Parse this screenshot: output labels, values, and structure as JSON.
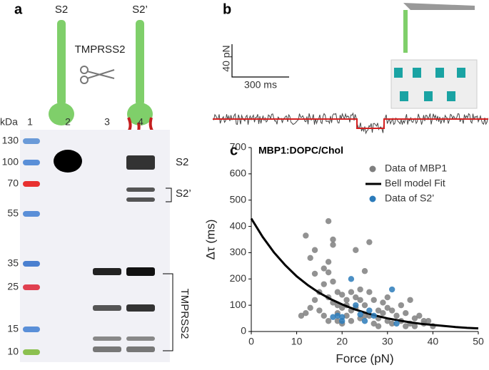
{
  "panel_a": {
    "label": "a",
    "protein_before": "S2",
    "protein_after": "S2’",
    "enzyme": "TMPRSS2",
    "kda_header": "kDa",
    "lanes": [
      "1",
      "2",
      "3",
      "4"
    ],
    "markers": [
      130,
      100,
      70,
      55,
      35,
      25,
      15,
      10
    ],
    "band_labels": [
      "S2",
      "S2’",
      "TMPRSS2"
    ]
  },
  "panel_b": {
    "label": "b",
    "scale_force": "40 pN",
    "scale_time": "300 ms"
  },
  "chart_data": {
    "type": "scatter",
    "panel_label": "c",
    "title": "MBP1:DOPC/Chol",
    "x_label": "Force (pN)",
    "y_label": "Δτ (ms)",
    "xlim": [
      0,
      50
    ],
    "ylim": [
      0,
      700
    ],
    "xticks": [
      0,
      10,
      20,
      30,
      40,
      50
    ],
    "yticks": [
      0,
      100,
      200,
      300,
      400,
      500,
      600,
      700
    ],
    "legend": "upper right",
    "series": [
      {
        "name": "Data of MBP1",
        "color": "#7f7f7f",
        "type": "scatter",
        "x": [
          12,
          13,
          14,
          16,
          17,
          17,
          17,
          16,
          15,
          14,
          13,
          12,
          11,
          15,
          16,
          17,
          17,
          18,
          18,
          18,
          18,
          19,
          19,
          19,
          20,
          20,
          20,
          21,
          21,
          22,
          22,
          22,
          23,
          23,
          23,
          24,
          24,
          24,
          25,
          25,
          26,
          26,
          26,
          27,
          27,
          28,
          28,
          29,
          29,
          30,
          30,
          31,
          32,
          33,
          33,
          34,
          35,
          35,
          36,
          37,
          38,
          39,
          40,
          14,
          19,
          21,
          25,
          28,
          31,
          30,
          34,
          36,
          38
        ],
        "values": [
          365,
          280,
          310,
          240,
          420,
          265,
          225,
          180,
          150,
          120,
          90,
          70,
          60,
          80,
          60,
          40,
          130,
          330,
          350,
          190,
          110,
          150,
          100,
          70,
          140,
          90,
          30,
          120,
          60,
          150,
          80,
          40,
          310,
          130,
          90,
          160,
          120,
          50,
          230,
          100,
          340,
          150,
          60,
          120,
          30,
          80,
          50,
          110,
          70,
          130,
          40,
          80,
          60,
          100,
          40,
          70,
          120,
          30,
          50,
          60,
          30,
          40,
          20,
          220,
          40,
          100,
          60,
          20,
          30,
          90,
          20,
          20,
          40
        ]
      },
      {
        "name": "Bell model Fit",
        "color": "#000000",
        "type": "line",
        "x": [
          0,
          2.5,
          5,
          7.5,
          10,
          12.5,
          15,
          17.5,
          20,
          22.5,
          25,
          27.5,
          30,
          32.5,
          35,
          37.5,
          40,
          42.5,
          45,
          47.5,
          50
        ],
        "values": [
          430,
          360,
          301,
          252,
          210,
          176,
          147,
          123,
          103,
          86,
          72,
          60,
          50,
          42,
          35,
          29,
          25,
          21,
          17,
          14,
          12
        ]
      },
      {
        "name": "Data of S2’",
        "color": "#2b7bba",
        "type": "scatter",
        "x": [
          18,
          19,
          20,
          22,
          23,
          24,
          25,
          26,
          27,
          31,
          32,
          20
        ],
        "values": [
          55,
          60,
          55,
          200,
          100,
          65,
          40,
          80,
          60,
          160,
          30,
          40
        ]
      }
    ]
  }
}
